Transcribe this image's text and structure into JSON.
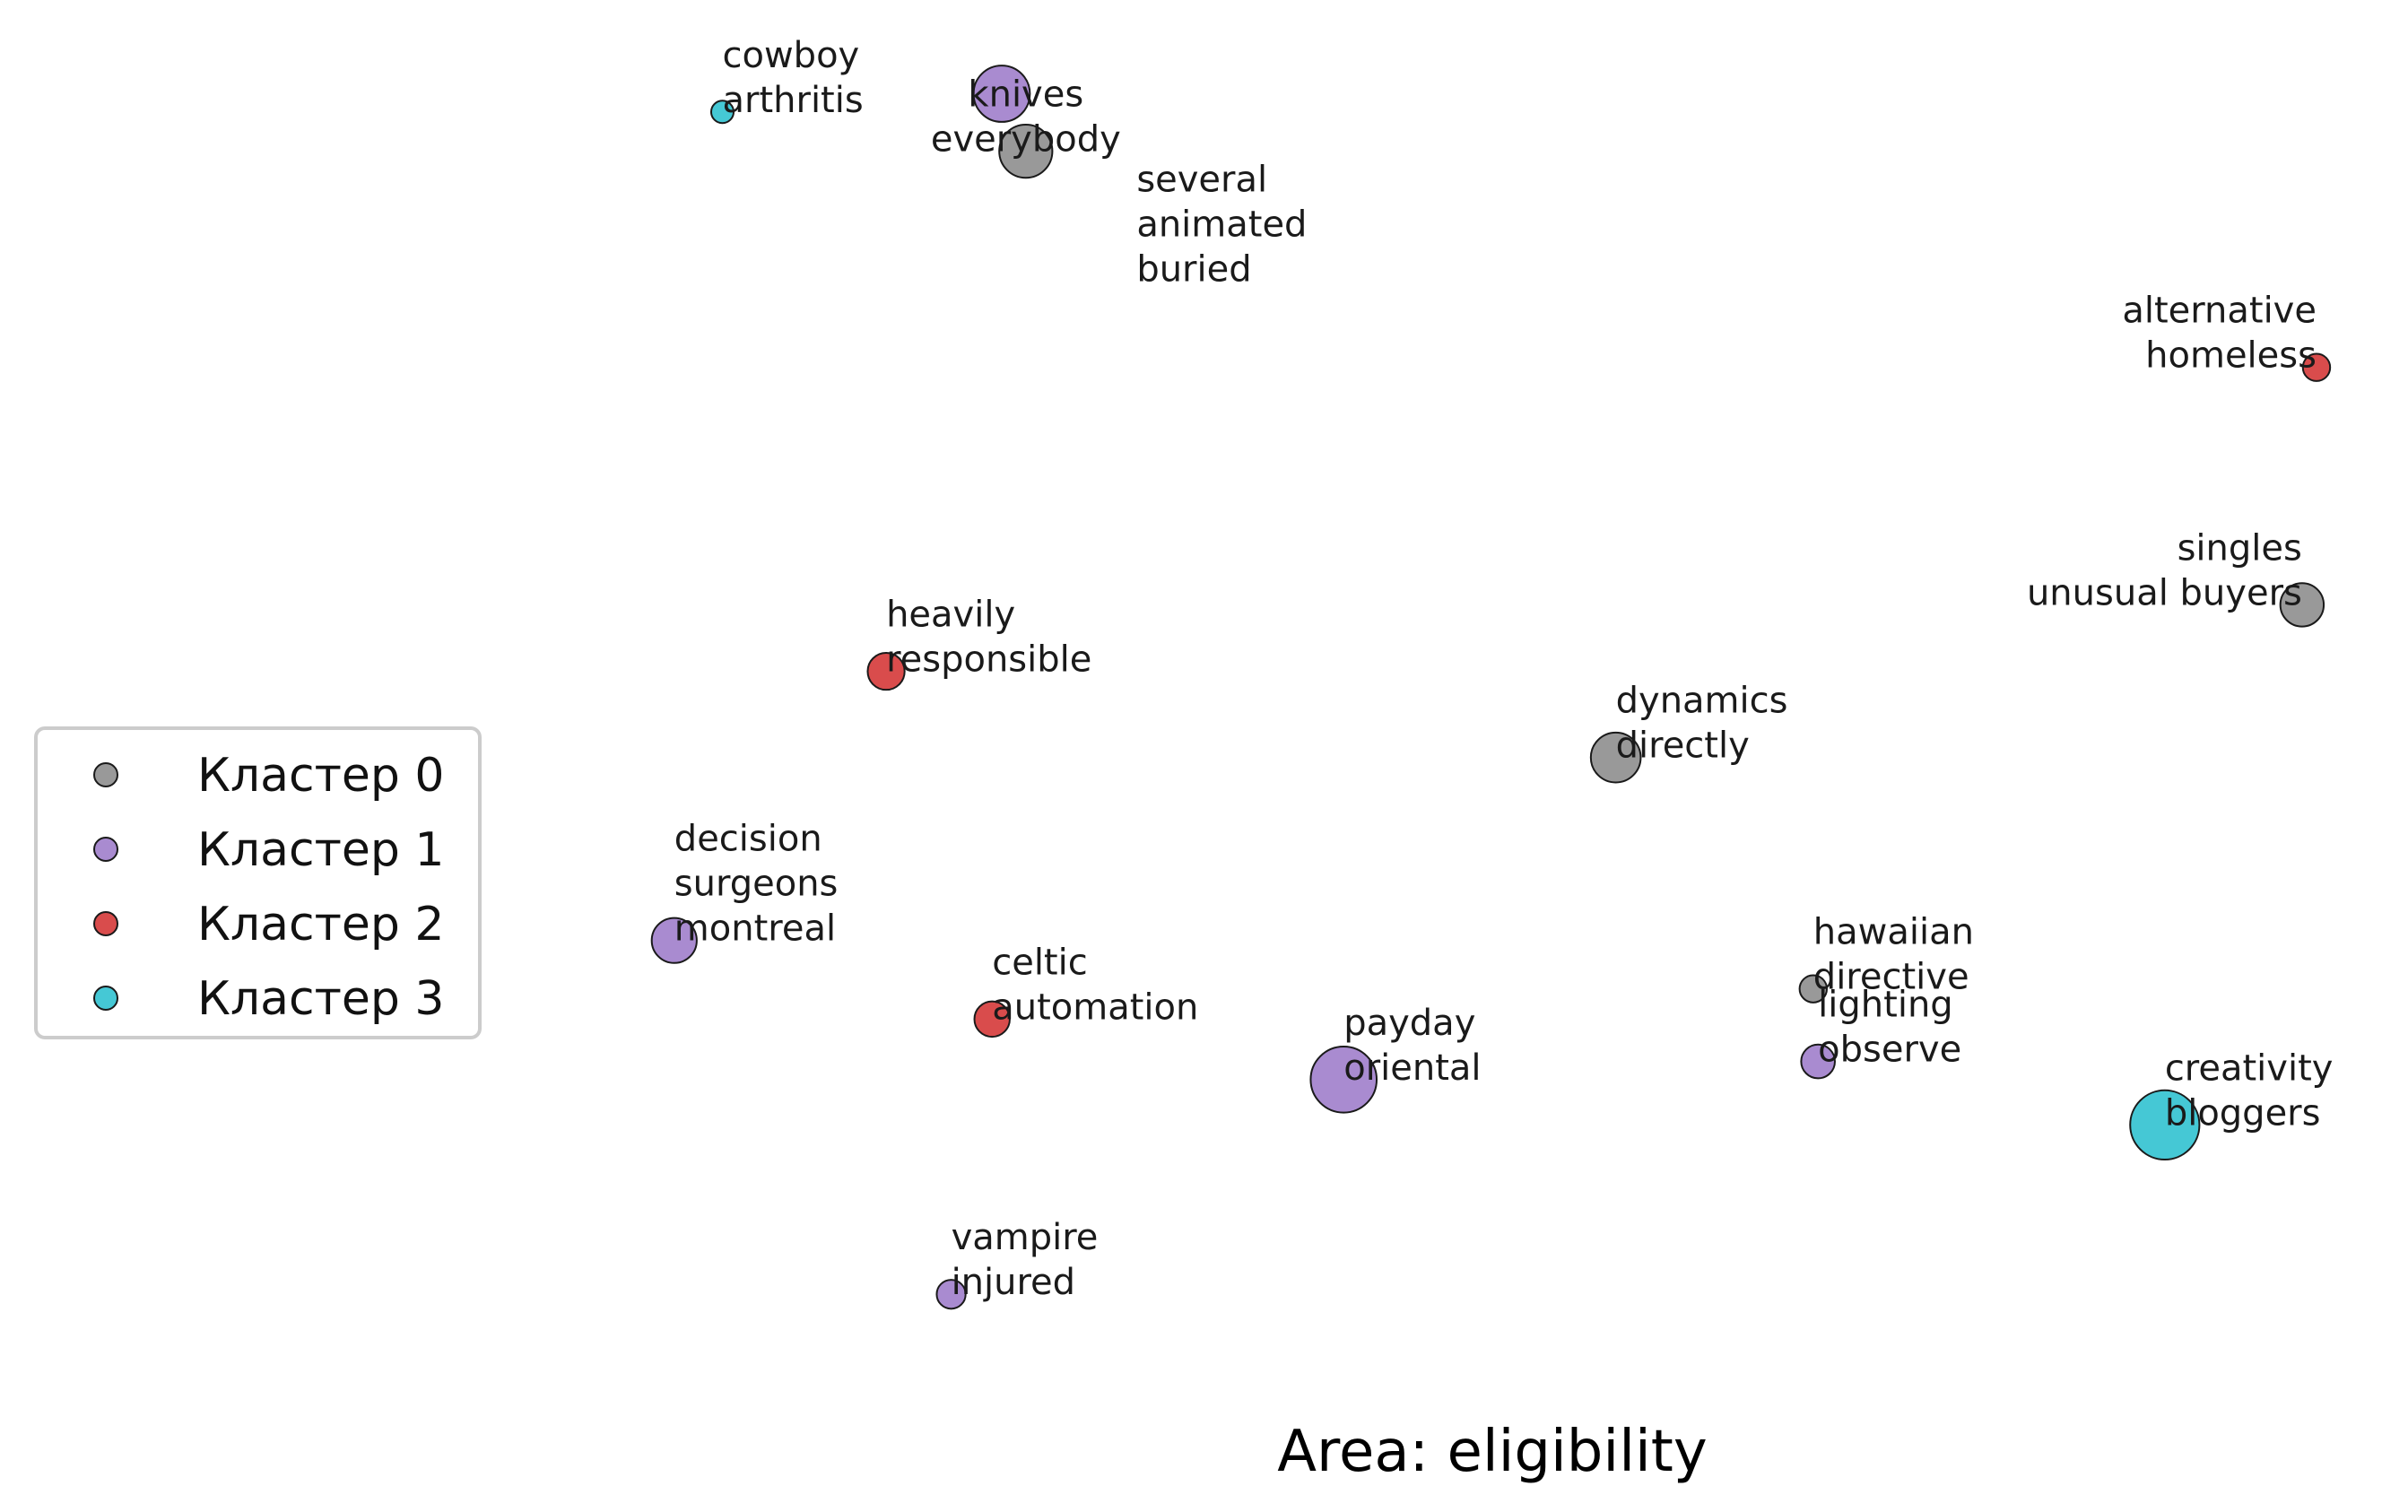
{
  "chart_data": {
    "type": "scatter",
    "caption": "Area: eligibility",
    "xlabel": "",
    "ylabel": "",
    "grid": false,
    "axes_visible": false,
    "legend": {
      "placement": "center-left",
      "entries": [
        {
          "name": "Кластер 0",
          "color": "#999999"
        },
        {
          "name": "Кластер 1",
          "color": "#a98bd0"
        },
        {
          "name": "Кластер 2",
          "color": "#d94c4c"
        },
        {
          "name": "Кластер 3",
          "color": "#45c8d5"
        }
      ]
    },
    "points": [
      {
        "label": [
          "cowboy",
          "arthritis"
        ],
        "cluster": 3,
        "x": 0.3,
        "y": 0.926,
        "size": 0.5,
        "label_anchor": "start"
      },
      {
        "label": [],
        "cluster": 1,
        "x": 0.416,
        "y": 0.938,
        "size": 2.6,
        "label_anchor": "start"
      },
      {
        "label": [
          "knives",
          "everybody"
        ],
        "cluster": 0,
        "x": 0.426,
        "y": 0.9,
        "size": 2.4,
        "label_anchor": "middle"
      },
      {
        "label": [
          "several",
          "animated",
          "buried"
        ],
        "cluster": 0,
        "x": 0.472,
        "y": 0.814,
        "size": 0,
        "label_anchor": "start"
      },
      {
        "label": [
          "alternative",
          "homeless"
        ],
        "cluster": 2,
        "x": 0.962,
        "y": 0.757,
        "size": 0.8,
        "label_anchor": "end"
      },
      {
        "label": [
          "singles",
          "unusual buyers"
        ],
        "cluster": 0,
        "x": 0.956,
        "y": 0.6,
        "size": 1.8,
        "label_anchor": "end"
      },
      {
        "label": [
          "heavily",
          "responsible"
        ],
        "cluster": 2,
        "x": 0.368,
        "y": 0.556,
        "size": 1.4,
        "label_anchor": "start"
      },
      {
        "label": [
          "dynamics",
          "directly"
        ],
        "cluster": 0,
        "x": 0.671,
        "y": 0.499,
        "size": 2.2,
        "label_anchor": "start"
      },
      {
        "label": [
          "decision",
          "surgeons",
          "montreal"
        ],
        "cluster": 1,
        "x": 0.28,
        "y": 0.378,
        "size": 1.9,
        "label_anchor": "start"
      },
      {
        "label": [
          "celtic",
          "automation"
        ],
        "cluster": 2,
        "x": 0.412,
        "y": 0.326,
        "size": 1.3,
        "label_anchor": "start"
      },
      {
        "label": [
          "hawaiian",
          "directive"
        ],
        "cluster": 0,
        "x": 0.753,
        "y": 0.346,
        "size": 0.8,
        "label_anchor": "start"
      },
      {
        "label": [
          "payday",
          "oriental"
        ],
        "cluster": 1,
        "x": 0.558,
        "y": 0.286,
        "size": 3.2,
        "label_anchor": "start"
      },
      {
        "label": [
          "lighting",
          "observe"
        ],
        "cluster": 1,
        "x": 0.755,
        "y": 0.298,
        "size": 1.2,
        "label_anchor": "start"
      },
      {
        "label": [
          "creativity",
          "bloggers"
        ],
        "cluster": 3,
        "x": 0.899,
        "y": 0.256,
        "size": 3.4,
        "label_anchor": "start"
      },
      {
        "label": [
          "vampire",
          "injured"
        ],
        "cluster": 1,
        "x": 0.395,
        "y": 0.144,
        "size": 0.9,
        "label_anchor": "start"
      }
    ]
  }
}
